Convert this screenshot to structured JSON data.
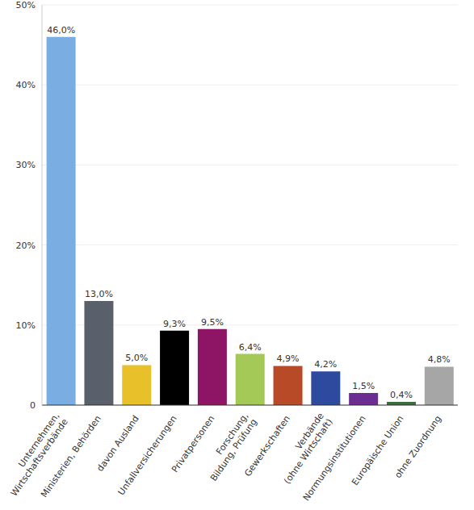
{
  "chart_data": {
    "type": "bar",
    "categories": [
      "Unternehmen,\nWirtschaftsverbände",
      "Ministerien, Behörden",
      "davon Ausland",
      "Unfallversicherungen",
      "Privatpersonen",
      "Forschung,\nBildung, Prüfung",
      "Gewerkschaften",
      "Verbände\n(ohne Wirtschaft)",
      "Normungsinstitutionen",
      "Europäische Union",
      "ohne Zuordnung"
    ],
    "values": [
      46.0,
      13.0,
      5.0,
      9.3,
      9.5,
      6.4,
      4.9,
      4.2,
      1.5,
      0.4,
      4.8
    ],
    "value_labels": [
      "46,0%",
      "13,0%",
      "5,0%",
      "9,3%",
      "9,5%",
      "6,4%",
      "4,9%",
      "4,2%",
      "1,5%",
      "0,4%",
      "4,8%"
    ],
    "colors": [
      "#7aaee3",
      "#5a606b",
      "#e8c12a",
      "#000000",
      "#8e1466",
      "#a5c957",
      "#b94a28",
      "#2e4a9e",
      "#6b2d91",
      "#3d6b3d",
      "#a6a6a6"
    ],
    "ylim": [
      0,
      50
    ],
    "yticks": [
      0,
      {
        "value": 10,
        "label": "10%"
      },
      {
        "value": 20,
        "label": "20%"
      },
      {
        "value": 30,
        "label": "30%"
      },
      {
        "value": 40,
        "label": "40%"
      },
      {
        "value": 50,
        "label": "50%"
      }
    ],
    "grid": true,
    "data_labels": true
  }
}
